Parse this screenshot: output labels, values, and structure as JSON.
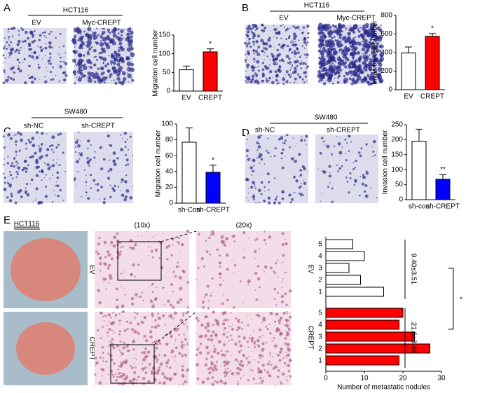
{
  "chart_data": [
    {
      "type": "bar",
      "panel": "A",
      "cell_line": "HCT116",
      "image_labels": [
        "EV",
        "Myc-CREPT"
      ],
      "y_label": "Migration cell number",
      "categories": [
        "EV",
        "CREPT"
      ],
      "values": [
        57,
        105
      ],
      "errors": [
        10,
        8
      ],
      "colors": [
        "#ffffff",
        "#ff0000"
      ],
      "ylim": [
        0,
        150
      ],
      "yticks": [
        0,
        50,
        100,
        150
      ],
      "annotation": "*"
    },
    {
      "type": "bar",
      "panel": "B",
      "cell_line": "HCT116",
      "image_labels": [
        "EV",
        "Myc-CREPT"
      ],
      "y_label": "Invasion cell number",
      "categories": [
        "EV",
        "CREPT"
      ],
      "values": [
        395,
        575
      ],
      "errors": [
        65,
        30
      ],
      "colors": [
        "#ffffff",
        "#ff0000"
      ],
      "ylim": [
        0,
        800
      ],
      "yticks": [
        0,
        200,
        400,
        600,
        800
      ],
      "annotation": "*"
    },
    {
      "type": "bar",
      "panel": "C",
      "cell_line": "SW480",
      "image_labels": [
        "sh-NC",
        "sh-CREPT"
      ],
      "y_label": "Migration cell number",
      "categories": [
        "sh-Con",
        "sh-CREPT"
      ],
      "values": [
        77,
        39
      ],
      "errors": [
        18,
        9
      ],
      "colors": [
        "#ffffff",
        "#0000ff"
      ],
      "ylim": [
        0,
        100
      ],
      "yticks": [
        0,
        20,
        40,
        60,
        80,
        100
      ],
      "annotation": "*"
    },
    {
      "type": "bar",
      "panel": "D",
      "cell_line": "SW480",
      "image_labels": [
        "sh-NC",
        "sh-CREPT"
      ],
      "y_label": "Invasion cell number",
      "categories": [
        "sh-con",
        "sh-CREPT"
      ],
      "values": [
        195,
        68
      ],
      "errors": [
        40,
        15
      ],
      "colors": [
        "#ffffff",
        "#0000ff"
      ],
      "ylim": [
        0,
        250
      ],
      "yticks": [
        0,
        50,
        100,
        150,
        200,
        250
      ],
      "annotation": "**"
    },
    {
      "type": "hbar",
      "panel": "E",
      "cell_line": "HCT116",
      "image_labels": [
        "(10x)",
        "(20x)"
      ],
      "x_label": "Number of metastatic nodules",
      "categories": [
        "1",
        "2",
        "3",
        "4",
        "5"
      ],
      "series": [
        {
          "name": "EV",
          "color": "#ffffff",
          "values": [
            15,
            9,
            6,
            10,
            7
          ],
          "stat": "9.40±3.51"
        },
        {
          "name": "CREPT",
          "color": "#ff0000",
          "values": [
            19,
            27,
            23,
            19,
            20
          ],
          "stat": "21.6±3.44"
        }
      ],
      "xlim": [
        0,
        30
      ],
      "xticks": [
        0,
        10,
        20,
        30
      ],
      "annotation": "*"
    }
  ]
}
